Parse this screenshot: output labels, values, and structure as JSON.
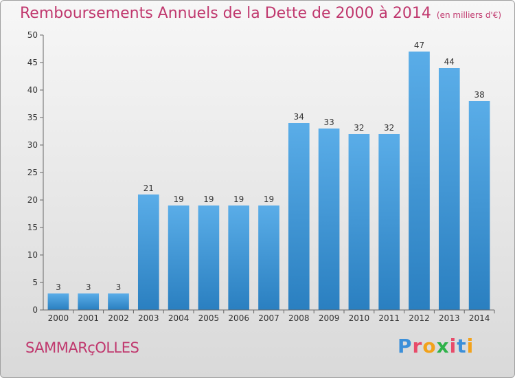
{
  "header": {
    "title": "Remboursements Annuels de la Dette de 2000 à 2014",
    "unit": "(en milliers d'€)"
  },
  "footer": {
    "commune": "SAMMARçOLLES",
    "logo_letters": [
      {
        "char": "P",
        "color": "#3b8fd9"
      },
      {
        "char": "r",
        "color": "#e84b6a"
      },
      {
        "char": "o",
        "color": "#f2a21b"
      },
      {
        "char": "x",
        "color": "#2fb24a"
      },
      {
        "char": "i",
        "color": "#e84b6a"
      },
      {
        "char": "t",
        "color": "#3b8fd9"
      },
      {
        "char": "i",
        "color": "#f2a21b"
      }
    ]
  },
  "colors": {
    "bar_top": "#5aade8",
    "bar_bottom": "#2a7fc0",
    "accent": "#c0386e"
  },
  "chart_data": {
    "type": "bar",
    "categories": [
      "2000",
      "2001",
      "2002",
      "2003",
      "2004",
      "2005",
      "2006",
      "2007",
      "2008",
      "2009",
      "2010",
      "2011",
      "2012",
      "2013",
      "2014"
    ],
    "values": [
      3,
      3,
      3,
      21,
      19,
      19,
      19,
      19,
      34,
      33,
      32,
      32,
      47,
      44,
      38
    ],
    "title": "Remboursements Annuels de la Dette de 2000 à 2014",
    "xlabel": "",
    "ylabel": "",
    "ylim": [
      0,
      50
    ],
    "yticks": [
      0,
      5,
      10,
      15,
      20,
      25,
      30,
      35,
      40,
      45,
      50
    ],
    "grid": false,
    "legend": "none"
  }
}
